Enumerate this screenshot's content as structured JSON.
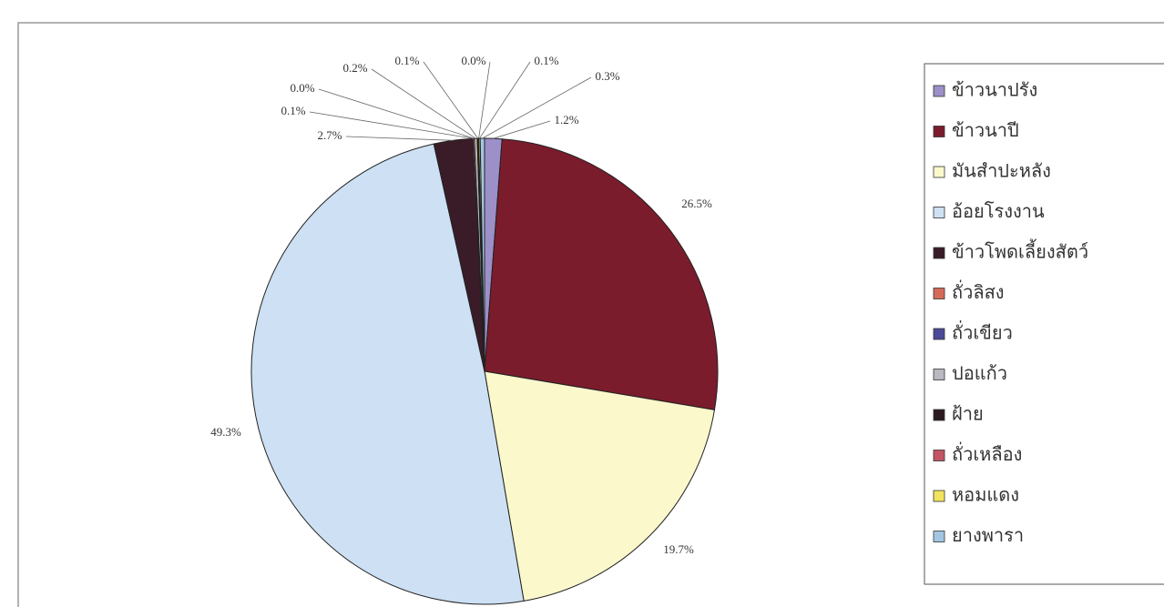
{
  "chart_data": {
    "type": "pie",
    "categories": [
      "ข้าวนาปรัง",
      "ข้าวนาปี",
      "มันสำปะหลัง",
      "อ้อยโรงงาน",
      "ข้าวโพดเลี้ยงสัตว์",
      "ถั่วลิสง",
      "ถั่วเขียว",
      "ปอแก้ว",
      "ฝ้าย",
      "ถั่วเหลือง",
      "หอมแดง",
      "ยางพารา"
    ],
    "values": [
      1.2,
      26.5,
      19.7,
      49.3,
      2.7,
      0.1,
      0.0,
      0.2,
      0.1,
      0.0,
      0.1,
      0.3
    ],
    "value_labels": [
      "1.2%",
      "26.5%",
      "19.7%",
      "49.3%",
      "2.7%",
      "0.1%",
      "0.0%",
      "0.2%",
      "0.1%",
      "0.0%",
      "0.1%",
      "0.3%"
    ],
    "colors": [
      "#9d8fc8",
      "#7a1c2c",
      "#fbf8cc",
      "#cde0f4",
      "#3a1c28",
      "#d66a58",
      "#4b4a98",
      "#b9b9c2",
      "#2b1a22",
      "#c25464",
      "#f2e35e",
      "#a3c6e2"
    ]
  }
}
